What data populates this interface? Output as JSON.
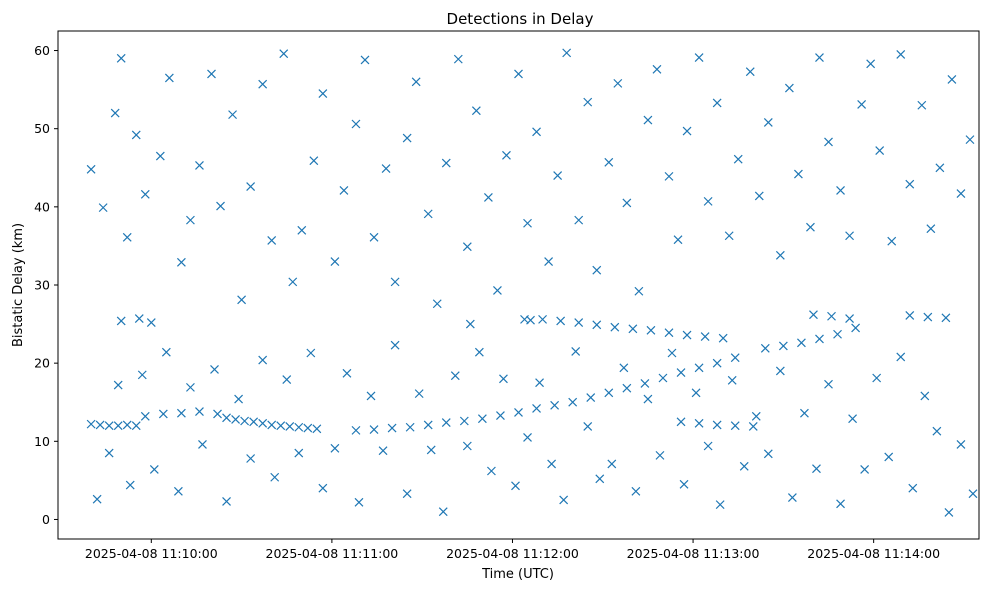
{
  "chart_data": {
    "type": "scatter",
    "title": "Detections in Delay",
    "xlabel": "Time (UTC)",
    "ylabel": "Bistatic Delay (km)",
    "x_unit": "time",
    "xlim": [
      "2025-04-08 11:09:29",
      "2025-04-08 11:14:35"
    ],
    "ylim": [
      -2.5,
      62.5
    ],
    "x_ticks": [
      "2025-04-08 11:10:00",
      "2025-04-08 11:11:00",
      "2025-04-08 11:12:00",
      "2025-04-08 11:13:00",
      "2025-04-08 11:14:00"
    ],
    "y_ticks": [
      0,
      10,
      20,
      30,
      40,
      50,
      60
    ],
    "grid": false,
    "marker": "x",
    "color": "#1f77b4",
    "points": [
      [
        "2025-04-08 11:09:40",
        12.2
      ],
      [
        "2025-04-08 11:09:43",
        12.1
      ],
      [
        "2025-04-08 11:09:46",
        12.0
      ],
      [
        "2025-04-08 11:09:49",
        12.0
      ],
      [
        "2025-04-08 11:09:52",
        12.1
      ],
      [
        "2025-04-08 11:09:55",
        12.0
      ],
      [
        "2025-04-08 11:09:58",
        13.2
      ],
      [
        "2025-04-08 11:10:04",
        13.5
      ],
      [
        "2025-04-08 11:10:10",
        13.6
      ],
      [
        "2025-04-08 11:10:16",
        13.8
      ],
      [
        "2025-04-08 11:10:22",
        13.5
      ],
      [
        "2025-04-08 11:10:25",
        13.0
      ],
      [
        "2025-04-08 11:10:28",
        12.8
      ],
      [
        "2025-04-08 11:10:31",
        12.6
      ],
      [
        "2025-04-08 11:10:34",
        12.5
      ],
      [
        "2025-04-08 11:10:37",
        12.3
      ],
      [
        "2025-04-08 11:10:40",
        12.1
      ],
      [
        "2025-04-08 11:10:43",
        12.0
      ],
      [
        "2025-04-08 11:10:46",
        11.9
      ],
      [
        "2025-04-08 11:10:49",
        11.8
      ],
      [
        "2025-04-08 11:10:52",
        11.7
      ],
      [
        "2025-04-08 11:10:55",
        11.6
      ],
      [
        "2025-04-08 11:11:08",
        11.4
      ],
      [
        "2025-04-08 11:11:14",
        11.5
      ],
      [
        "2025-04-08 11:11:20",
        11.7
      ],
      [
        "2025-04-08 11:11:26",
        11.8
      ],
      [
        "2025-04-08 11:11:32",
        12.1
      ],
      [
        "2025-04-08 11:11:38",
        12.4
      ],
      [
        "2025-04-08 11:11:44",
        12.6
      ],
      [
        "2025-04-08 11:11:50",
        12.9
      ],
      [
        "2025-04-08 11:11:56",
        13.3
      ],
      [
        "2025-04-08 11:12:02",
        13.7
      ],
      [
        "2025-04-08 11:12:08",
        14.2
      ],
      [
        "2025-04-08 11:12:14",
        14.6
      ],
      [
        "2025-04-08 11:12:20",
        15.0
      ],
      [
        "2025-04-08 11:12:26",
        15.6
      ],
      [
        "2025-04-08 11:12:32",
        16.2
      ],
      [
        "2025-04-08 11:12:38",
        16.8
      ],
      [
        "2025-04-08 11:12:44",
        17.4
      ],
      [
        "2025-04-08 11:12:50",
        18.1
      ],
      [
        "2025-04-08 11:12:56",
        18.8
      ],
      [
        "2025-04-08 11:13:02",
        19.4
      ],
      [
        "2025-04-08 11:13:08",
        20.0
      ],
      [
        "2025-04-08 11:13:14",
        20.7
      ],
      [
        "2025-04-08 11:12:10",
        25.6
      ],
      [
        "2025-04-08 11:12:16",
        25.4
      ],
      [
        "2025-04-08 11:12:22",
        25.2
      ],
      [
        "2025-04-08 11:12:28",
        24.9
      ],
      [
        "2025-04-08 11:12:34",
        24.6
      ],
      [
        "2025-04-08 11:12:40",
        24.4
      ],
      [
        "2025-04-08 11:12:46",
        24.2
      ],
      [
        "2025-04-08 11:12:52",
        23.9
      ],
      [
        "2025-04-08 11:12:58",
        23.6
      ],
      [
        "2025-04-08 11:13:04",
        23.4
      ],
      [
        "2025-04-08 11:13:10",
        23.2
      ],
      [
        "2025-04-08 11:12:56",
        12.5
      ],
      [
        "2025-04-08 11:13:02",
        12.3
      ],
      [
        "2025-04-08 11:13:08",
        12.1
      ],
      [
        "2025-04-08 11:13:14",
        12.0
      ],
      [
        "2025-04-08 11:13:20",
        11.9
      ],
      [
        "2025-04-08 11:13:24",
        21.9
      ],
      [
        "2025-04-08 11:13:30",
        22.2
      ],
      [
        "2025-04-08 11:13:36",
        22.6
      ],
      [
        "2025-04-08 11:13:42",
        23.1
      ],
      [
        "2025-04-08 11:13:48",
        23.7
      ],
      [
        "2025-04-08 11:13:54",
        24.5
      ],
      [
        "2025-04-08 11:13:40",
        26.2
      ],
      [
        "2025-04-08 11:13:46",
        26.0
      ],
      [
        "2025-04-08 11:13:52",
        25.7
      ],
      [
        "2025-04-08 11:14:12",
        26.1
      ],
      [
        "2025-04-08 11:14:18",
        25.9
      ],
      [
        "2025-04-08 11:14:24",
        25.8
      ],
      [
        "2025-04-08 11:09:50",
        25.4
      ],
      [
        "2025-04-08 11:09:56",
        25.7
      ],
      [
        "2025-04-08 11:10:00",
        25.2
      ],
      [
        "2025-04-08 11:11:46",
        25.0
      ],
      [
        "2025-04-08 11:12:04",
        25.6
      ],
      [
        "2025-04-08 11:12:06",
        25.5
      ],
      [
        "2025-04-08 11:09:40",
        44.8
      ],
      [
        "2025-04-08 11:09:44",
        39.9
      ],
      [
        "2025-04-08 11:09:48",
        52.0
      ],
      [
        "2025-04-08 11:09:50",
        59.0
      ],
      [
        "2025-04-08 11:09:52",
        36.1
      ],
      [
        "2025-04-08 11:09:55",
        49.2
      ],
      [
        "2025-04-08 11:09:58",
        41.6
      ],
      [
        "2025-04-08 11:10:03",
        46.5
      ],
      [
        "2025-04-08 11:10:06",
        56.5
      ],
      [
        "2025-04-08 11:10:10",
        32.9
      ],
      [
        "2025-04-08 11:10:13",
        38.3
      ],
      [
        "2025-04-08 11:10:16",
        45.3
      ],
      [
        "2025-04-08 11:10:20",
        57.0
      ],
      [
        "2025-04-08 11:10:23",
        40.1
      ],
      [
        "2025-04-08 11:10:27",
        51.8
      ],
      [
        "2025-04-08 11:10:30",
        28.1
      ],
      [
        "2025-04-08 11:10:33",
        42.6
      ],
      [
        "2025-04-08 11:10:37",
        55.7
      ],
      [
        "2025-04-08 11:10:40",
        35.7
      ],
      [
        "2025-04-08 11:10:44",
        59.6
      ],
      [
        "2025-04-08 11:10:47",
        30.4
      ],
      [
        "2025-04-08 11:10:50",
        37.0
      ],
      [
        "2025-04-08 11:10:54",
        45.9
      ],
      [
        "2025-04-08 11:10:57",
        54.5
      ],
      [
        "2025-04-08 11:11:01",
        33.0
      ],
      [
        "2025-04-08 11:11:04",
        42.1
      ],
      [
        "2025-04-08 11:11:08",
        50.6
      ],
      [
        "2025-04-08 11:11:11",
        58.8
      ],
      [
        "2025-04-08 11:11:14",
        36.1
      ],
      [
        "2025-04-08 11:11:18",
        44.9
      ],
      [
        "2025-04-08 11:11:21",
        30.4
      ],
      [
        "2025-04-08 11:11:25",
        48.8
      ],
      [
        "2025-04-08 11:11:28",
        56.0
      ],
      [
        "2025-04-08 11:11:32",
        39.1
      ],
      [
        "2025-04-08 11:11:35",
        27.6
      ],
      [
        "2025-04-08 11:11:38",
        45.6
      ],
      [
        "2025-04-08 11:11:42",
        58.9
      ],
      [
        "2025-04-08 11:11:45",
        34.9
      ],
      [
        "2025-04-08 11:11:48",
        52.3
      ],
      [
        "2025-04-08 11:11:52",
        41.2
      ],
      [
        "2025-04-08 11:11:55",
        29.3
      ],
      [
        "2025-04-08 11:11:58",
        46.6
      ],
      [
        "2025-04-08 11:12:02",
        57.0
      ],
      [
        "2025-04-08 11:12:05",
        37.9
      ],
      [
        "2025-04-08 11:12:08",
        49.6
      ],
      [
        "2025-04-08 11:12:12",
        33.0
      ],
      [
        "2025-04-08 11:12:15",
        44.0
      ],
      [
        "2025-04-08 11:12:18",
        59.7
      ],
      [
        "2025-04-08 11:12:22",
        38.3
      ],
      [
        "2025-04-08 11:12:25",
        53.4
      ],
      [
        "2025-04-08 11:12:28",
        31.9
      ],
      [
        "2025-04-08 11:12:32",
        45.7
      ],
      [
        "2025-04-08 11:12:35",
        55.8
      ],
      [
        "2025-04-08 11:12:38",
        40.5
      ],
      [
        "2025-04-08 11:12:42",
        29.2
      ],
      [
        "2025-04-08 11:12:45",
        51.1
      ],
      [
        "2025-04-08 11:12:48",
        57.6
      ],
      [
        "2025-04-08 11:12:52",
        43.9
      ],
      [
        "2025-04-08 11:12:55",
        35.8
      ],
      [
        "2025-04-08 11:12:58",
        49.7
      ],
      [
        "2025-04-08 11:13:02",
        59.1
      ],
      [
        "2025-04-08 11:13:05",
        40.7
      ],
      [
        "2025-04-08 11:13:08",
        53.3
      ],
      [
        "2025-04-08 11:13:12",
        36.3
      ],
      [
        "2025-04-08 11:13:15",
        46.1
      ],
      [
        "2025-04-08 11:13:19",
        57.3
      ],
      [
        "2025-04-08 11:13:22",
        41.4
      ],
      [
        "2025-04-08 11:13:25",
        50.8
      ],
      [
        "2025-04-08 11:13:29",
        33.8
      ],
      [
        "2025-04-08 11:13:32",
        55.2
      ],
      [
        "2025-04-08 11:13:35",
        44.2
      ],
      [
        "2025-04-08 11:13:39",
        37.4
      ],
      [
        "2025-04-08 11:13:42",
        59.1
      ],
      [
        "2025-04-08 11:13:45",
        48.3
      ],
      [
        "2025-04-08 11:13:49",
        42.1
      ],
      [
        "2025-04-08 11:13:52",
        36.3
      ],
      [
        "2025-04-08 11:13:56",
        53.1
      ],
      [
        "2025-04-08 11:13:59",
        58.3
      ],
      [
        "2025-04-08 11:14:02",
        47.2
      ],
      [
        "2025-04-08 11:14:06",
        35.6
      ],
      [
        "2025-04-08 11:14:09",
        59.5
      ],
      [
        "2025-04-08 11:14:12",
        42.9
      ],
      [
        "2025-04-08 11:14:16",
        53.0
      ],
      [
        "2025-04-08 11:14:19",
        37.2
      ],
      [
        "2025-04-08 11:14:22",
        45.0
      ],
      [
        "2025-04-08 11:14:26",
        56.3
      ],
      [
        "2025-04-08 11:14:29",
        41.7
      ],
      [
        "2025-04-08 11:14:32",
        48.6
      ],
      [
        "2025-04-08 11:09:42",
        2.6
      ],
      [
        "2025-04-08 11:09:46",
        8.5
      ],
      [
        "2025-04-08 11:09:49",
        17.2
      ],
      [
        "2025-04-08 11:09:53",
        4.4
      ],
      [
        "2025-04-08 11:09:57",
        18.5
      ],
      [
        "2025-04-08 11:10:01",
        6.4
      ],
      [
        "2025-04-08 11:10:05",
        21.4
      ],
      [
        "2025-04-08 11:10:09",
        3.6
      ],
      [
        "2025-04-08 11:10:13",
        16.9
      ],
      [
        "2025-04-08 11:10:17",
        9.6
      ],
      [
        "2025-04-08 11:10:21",
        19.2
      ],
      [
        "2025-04-08 11:10:25",
        2.3
      ],
      [
        "2025-04-08 11:10:29",
        15.4
      ],
      [
        "2025-04-08 11:10:33",
        7.8
      ],
      [
        "2025-04-08 11:10:37",
        20.4
      ],
      [
        "2025-04-08 11:10:41",
        5.4
      ],
      [
        "2025-04-08 11:10:45",
        17.9
      ],
      [
        "2025-04-08 11:10:49",
        8.5
      ],
      [
        "2025-04-08 11:10:53",
        21.3
      ],
      [
        "2025-04-08 11:10:57",
        4.0
      ],
      [
        "2025-04-08 11:11:01",
        9.1
      ],
      [
        "2025-04-08 11:11:05",
        18.7
      ],
      [
        "2025-04-08 11:11:09",
        2.2
      ],
      [
        "2025-04-08 11:11:13",
        15.8
      ],
      [
        "2025-04-08 11:11:17",
        8.8
      ],
      [
        "2025-04-08 11:11:21",
        22.3
      ],
      [
        "2025-04-08 11:11:25",
        3.3
      ],
      [
        "2025-04-08 11:11:29",
        16.1
      ],
      [
        "2025-04-08 11:11:33",
        8.9
      ],
      [
        "2025-04-08 11:11:37",
        1.0
      ],
      [
        "2025-04-08 11:11:41",
        18.4
      ],
      [
        "2025-04-08 11:11:45",
        9.4
      ],
      [
        "2025-04-08 11:11:49",
        21.4
      ],
      [
        "2025-04-08 11:11:53",
        6.2
      ],
      [
        "2025-04-08 11:11:57",
        18.0
      ],
      [
        "2025-04-08 11:12:01",
        4.3
      ],
      [
        "2025-04-08 11:12:05",
        10.5
      ],
      [
        "2025-04-08 11:12:09",
        17.5
      ],
      [
        "2025-04-08 11:12:13",
        7.1
      ],
      [
        "2025-04-08 11:12:17",
        2.5
      ],
      [
        "2025-04-08 11:12:21",
        21.5
      ],
      [
        "2025-04-08 11:12:25",
        11.9
      ],
      [
        "2025-04-08 11:12:29",
        5.2
      ],
      [
        "2025-04-08 11:12:33",
        7.1
      ],
      [
        "2025-04-08 11:12:37",
        19.4
      ],
      [
        "2025-04-08 11:12:41",
        3.6
      ],
      [
        "2025-04-08 11:12:45",
        15.4
      ],
      [
        "2025-04-08 11:12:49",
        8.2
      ],
      [
        "2025-04-08 11:12:53",
        21.3
      ],
      [
        "2025-04-08 11:12:57",
        4.5
      ],
      [
        "2025-04-08 11:13:01",
        16.2
      ],
      [
        "2025-04-08 11:13:05",
        9.4
      ],
      [
        "2025-04-08 11:13:09",
        1.9
      ],
      [
        "2025-04-08 11:13:13",
        17.8
      ],
      [
        "2025-04-08 11:13:17",
        6.8
      ],
      [
        "2025-04-08 11:13:21",
        13.2
      ],
      [
        "2025-04-08 11:13:25",
        8.4
      ],
      [
        "2025-04-08 11:13:29",
        19.0
      ],
      [
        "2025-04-08 11:13:33",
        2.8
      ],
      [
        "2025-04-08 11:13:37",
        13.6
      ],
      [
        "2025-04-08 11:13:41",
        6.5
      ],
      [
        "2025-04-08 11:13:45",
        17.3
      ],
      [
        "2025-04-08 11:13:49",
        2.0
      ],
      [
        "2025-04-08 11:13:53",
        12.9
      ],
      [
        "2025-04-08 11:13:57",
        6.4
      ],
      [
        "2025-04-08 11:14:01",
        18.1
      ],
      [
        "2025-04-08 11:14:05",
        8.0
      ],
      [
        "2025-04-08 11:14:09",
        20.8
      ],
      [
        "2025-04-08 11:14:13",
        4.0
      ],
      [
        "2025-04-08 11:14:17",
        15.8
      ],
      [
        "2025-04-08 11:14:21",
        11.3
      ],
      [
        "2025-04-08 11:14:25",
        0.9
      ],
      [
        "2025-04-08 11:14:29",
        9.6
      ],
      [
        "2025-04-08 11:14:33",
        3.3
      ]
    ]
  }
}
